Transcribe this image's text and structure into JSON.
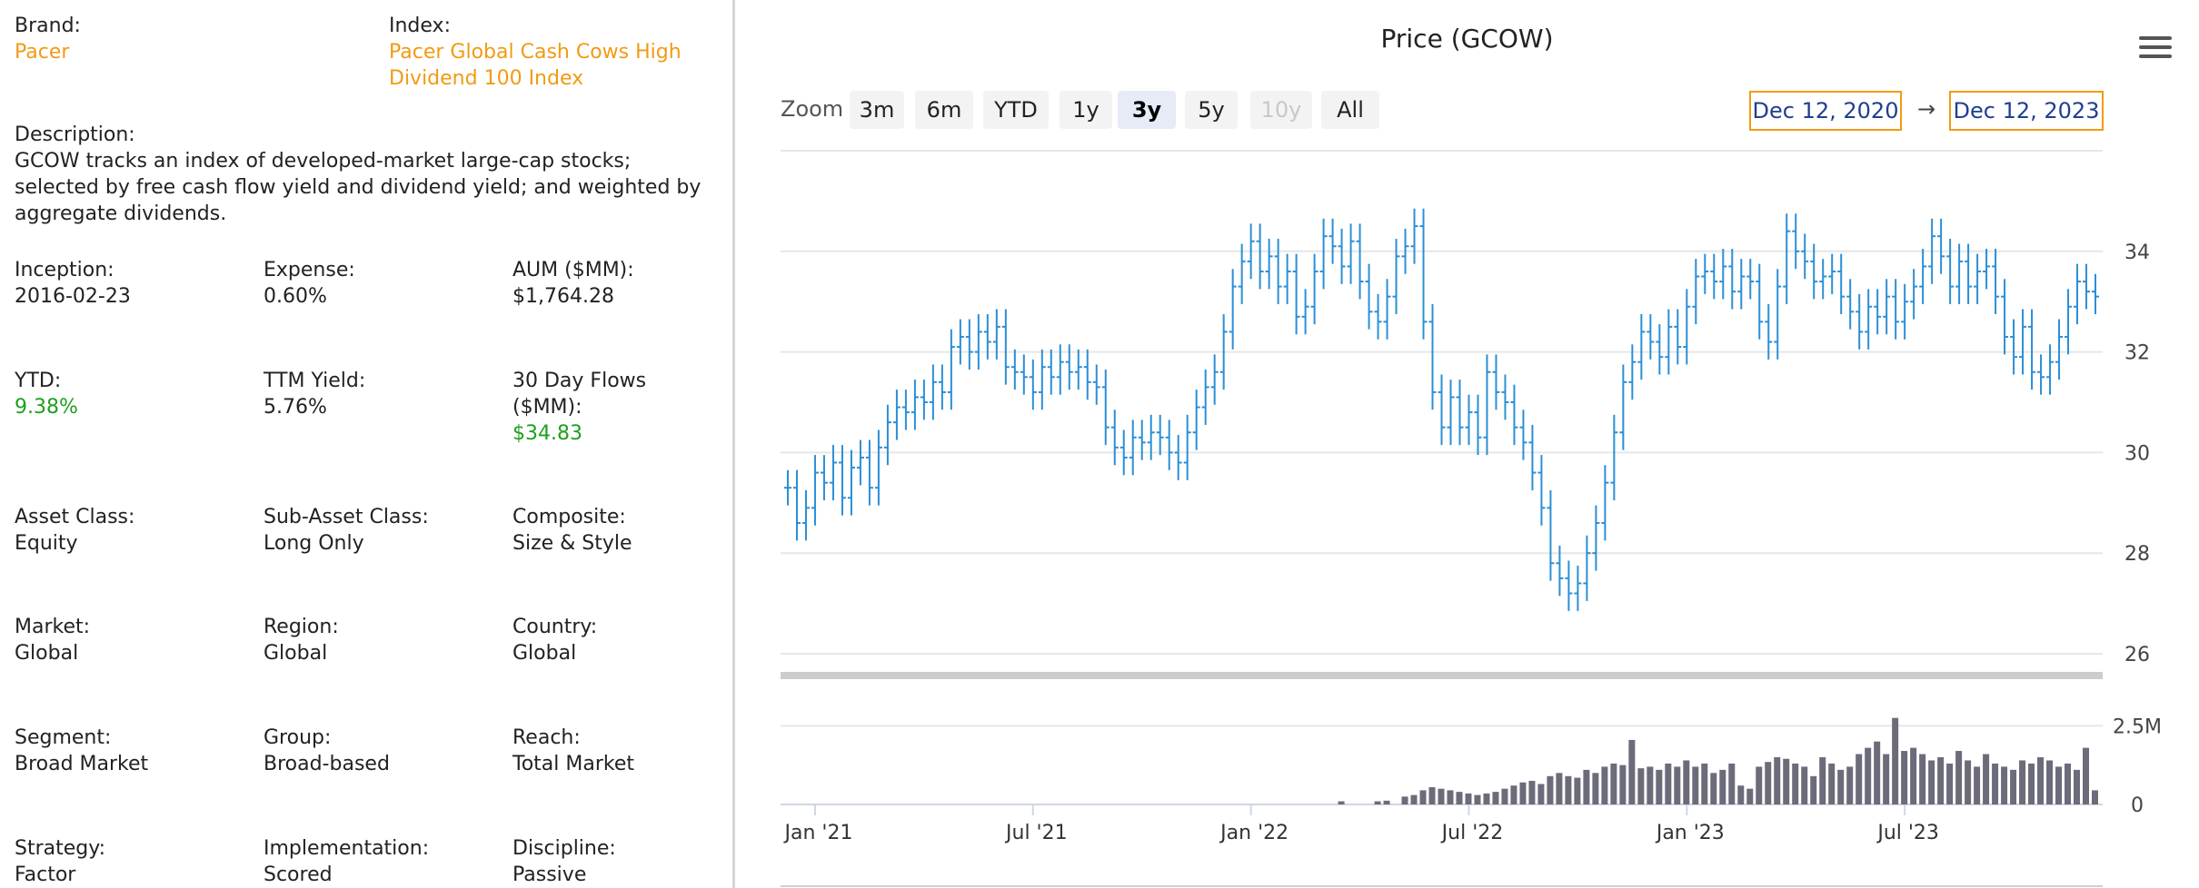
{
  "fields": {
    "brand": {
      "label": "Brand:",
      "value": "Pacer"
    },
    "index": {
      "label": "Index:",
      "value_line1": "Pacer Global Cash Cows High",
      "value_line2": "Dividend 100 Index"
    },
    "description": {
      "label": "Description:",
      "line1": "GCOW tracks an index of developed-market large-cap stocks;",
      "line2": "selected by free cash flow yield and dividend yield; and weighted by",
      "line3": "aggregate dividends."
    },
    "inception": {
      "label": "Inception:",
      "value": "2016-02-23"
    },
    "expense": {
      "label": "Expense:",
      "value": "0.60%"
    },
    "aum": {
      "label": "AUM ($MM):",
      "value": "$1,764.28"
    },
    "ytd": {
      "label": "YTD:",
      "value": "9.38%"
    },
    "ttm_yield": {
      "label": "TTM Yield:",
      "value": "5.76%"
    },
    "flows": {
      "label_line1": "30 Day Flows",
      "label_line2": "($MM):",
      "value": "$34.83"
    },
    "asset_class": {
      "label": "Asset Class:",
      "value": "Equity"
    },
    "sub_asset_class": {
      "label": "Sub-Asset Class:",
      "value": "Long Only"
    },
    "composite": {
      "label": "Composite:",
      "value": "Size & Style"
    },
    "market": {
      "label": "Market:",
      "value": "Global"
    },
    "region": {
      "label": "Region:",
      "value": "Global"
    },
    "country": {
      "label": "Country:",
      "value": "Global"
    },
    "segment": {
      "label": "Segment:",
      "value": "Broad Market"
    },
    "group": {
      "label": "Group:",
      "value": "Broad-based"
    },
    "reach": {
      "label": "Reach:",
      "value": "Total Market"
    },
    "strategy": {
      "label": "Strategy:",
      "value": "Factor"
    },
    "implementation": {
      "label": "Implementation:",
      "value": "Scored"
    },
    "discipline": {
      "label": "Discipline:",
      "value": "Passive"
    }
  },
  "chart": {
    "title": "Price (GCOW)",
    "zoom_label": "Zoom",
    "zoom_buttons": [
      "3m",
      "6m",
      "YTD",
      "1y",
      "3y",
      "5y",
      "10y",
      "All"
    ],
    "zoom_active": "3y",
    "zoom_disabled": [
      "10y"
    ],
    "date_from": "Dec 12, 2020",
    "date_arrow": "→",
    "date_to": "Dec 12, 2023",
    "colors": {
      "price": "#2b8fd6",
      "volume": "#6b6b7a",
      "grid": "#e6e6e6",
      "navigator": "#cccccc"
    }
  },
  "chart_data": {
    "type": "line",
    "title": "Price (GCOW)",
    "price_axis": {
      "ticks": [
        26,
        28,
        30,
        32,
        34
      ],
      "ylim": [
        26,
        36
      ]
    },
    "volume_axis": {
      "tick_labels": [
        "0",
        "2.5M"
      ],
      "ylim": [
        0,
        3000000
      ]
    },
    "x_axis": {
      "ticks": [
        "Jan '21",
        "Jul '21",
        "Jan '22",
        "Jul '22",
        "Jan '23",
        "Jul '23"
      ],
      "range": [
        "Dec 12, 2020",
        "Dec 12, 2023"
      ]
    },
    "price_series": {
      "name": "GCOW",
      "points": [
        [
          0,
          29.3
        ],
        [
          1,
          28.6
        ],
        [
          2,
          28.9
        ],
        [
          3,
          29.6
        ],
        [
          4,
          29.4
        ],
        [
          5,
          29.8
        ],
        [
          6,
          29.1
        ],
        [
          7,
          29.7
        ],
        [
          8,
          29.9
        ],
        [
          9,
          29.3
        ],
        [
          10,
          30.1
        ],
        [
          11,
          30.6
        ],
        [
          12,
          30.9
        ],
        [
          13,
          30.8
        ],
        [
          14,
          31.1
        ],
        [
          15,
          31.0
        ],
        [
          16,
          31.4
        ],
        [
          17,
          31.2
        ],
        [
          18,
          32.1
        ],
        [
          19,
          32.3
        ],
        [
          20,
          32.0
        ],
        [
          21,
          32.4
        ],
        [
          22,
          32.2
        ],
        [
          23,
          32.5
        ],
        [
          24,
          31.7
        ],
        [
          25,
          31.6
        ],
        [
          26,
          31.5
        ],
        [
          27,
          31.2
        ],
        [
          28,
          31.7
        ],
        [
          29,
          31.5
        ],
        [
          30,
          31.8
        ],
        [
          31,
          31.6
        ],
        [
          32,
          31.7
        ],
        [
          33,
          31.4
        ],
        [
          34,
          31.3
        ],
        [
          35,
          30.5
        ],
        [
          36,
          30.1
        ],
        [
          37,
          29.9
        ],
        [
          38,
          30.3
        ],
        [
          39,
          30.2
        ],
        [
          40,
          30.4
        ],
        [
          41,
          30.3
        ],
        [
          42,
          30.0
        ],
        [
          43,
          29.8
        ],
        [
          44,
          30.4
        ],
        [
          45,
          30.9
        ],
        [
          46,
          31.3
        ],
        [
          47,
          31.6
        ],
        [
          48,
          32.4
        ],
        [
          49,
          33.3
        ],
        [
          50,
          33.8
        ],
        [
          51,
          34.2
        ],
        [
          52,
          33.6
        ],
        [
          53,
          33.9
        ],
        [
          54,
          33.3
        ],
        [
          55,
          33.6
        ],
        [
          56,
          32.7
        ],
        [
          57,
          32.9
        ],
        [
          58,
          33.6
        ],
        [
          59,
          34.3
        ],
        [
          60,
          34.1
        ],
        [
          61,
          33.7
        ],
        [
          62,
          34.2
        ],
        [
          63,
          33.4
        ],
        [
          64,
          32.8
        ],
        [
          65,
          32.6
        ],
        [
          66,
          33.1
        ],
        [
          67,
          33.9
        ],
        [
          68,
          34.1
        ],
        [
          69,
          34.5
        ],
        [
          70,
          32.6
        ],
        [
          71,
          31.2
        ],
        [
          72,
          30.5
        ],
        [
          73,
          31.1
        ],
        [
          74,
          30.5
        ],
        [
          75,
          30.8
        ],
        [
          76,
          30.3
        ],
        [
          77,
          31.6
        ],
        [
          78,
          31.2
        ],
        [
          79,
          31.0
        ],
        [
          80,
          30.5
        ],
        [
          81,
          30.2
        ],
        [
          82,
          29.6
        ],
        [
          83,
          28.9
        ],
        [
          84,
          27.8
        ],
        [
          85,
          27.5
        ],
        [
          86,
          27.2
        ],
        [
          87,
          27.4
        ],
        [
          88,
          28.0
        ],
        [
          89,
          28.6
        ],
        [
          90,
          29.4
        ],
        [
          91,
          30.4
        ],
        [
          92,
          31.4
        ],
        [
          93,
          31.8
        ],
        [
          94,
          32.4
        ],
        [
          95,
          32.2
        ],
        [
          96,
          31.9
        ],
        [
          97,
          32.5
        ],
        [
          98,
          32.1
        ],
        [
          99,
          32.9
        ],
        [
          100,
          33.5
        ],
        [
          101,
          33.6
        ],
        [
          102,
          33.4
        ],
        [
          103,
          33.7
        ],
        [
          104,
          33.2
        ],
        [
          105,
          33.5
        ],
        [
          106,
          33.4
        ],
        [
          107,
          32.6
        ],
        [
          108,
          32.2
        ],
        [
          109,
          33.3
        ],
        [
          110,
          34.4
        ],
        [
          111,
          34.0
        ],
        [
          112,
          33.8
        ],
        [
          113,
          33.4
        ],
        [
          114,
          33.5
        ],
        [
          115,
          33.6
        ],
        [
          116,
          33.1
        ],
        [
          117,
          32.8
        ],
        [
          118,
          32.4
        ],
        [
          119,
          32.9
        ],
        [
          120,
          32.7
        ],
        [
          121,
          33.1
        ],
        [
          122,
          32.6
        ],
        [
          123,
          33.0
        ],
        [
          124,
          33.3
        ],
        [
          125,
          33.7
        ],
        [
          126,
          34.3
        ],
        [
          127,
          33.9
        ],
        [
          128,
          33.3
        ],
        [
          129,
          33.8
        ],
        [
          130,
          33.3
        ],
        [
          131,
          33.6
        ],
        [
          132,
          33.7
        ],
        [
          133,
          33.1
        ],
        [
          134,
          32.3
        ],
        [
          135,
          31.9
        ],
        [
          136,
          32.5
        ],
        [
          137,
          31.6
        ],
        [
          138,
          31.5
        ],
        [
          139,
          31.8
        ],
        [
          140,
          32.3
        ],
        [
          141,
          32.9
        ],
        [
          142,
          33.4
        ],
        [
          143,
          33.2
        ],
        [
          144,
          33.1
        ]
      ]
    },
    "volume_series": {
      "name": "Volume",
      "bars": [
        [
          61,
          0.1
        ],
        [
          65,
          0.1
        ],
        [
          66,
          0.12
        ],
        [
          68,
          0.25
        ],
        [
          69,
          0.3
        ],
        [
          70,
          0.45
        ],
        [
          71,
          0.55
        ],
        [
          72,
          0.5
        ],
        [
          73,
          0.45
        ],
        [
          74,
          0.4
        ],
        [
          75,
          0.35
        ],
        [
          76,
          0.3
        ],
        [
          77,
          0.35
        ],
        [
          78,
          0.4
        ],
        [
          79,
          0.5
        ],
        [
          80,
          0.6
        ],
        [
          81,
          0.7
        ],
        [
          82,
          0.75
        ],
        [
          83,
          0.65
        ],
        [
          84,
          0.9
        ],
        [
          85,
          1.0
        ],
        [
          86,
          0.9
        ],
        [
          87,
          0.85
        ],
        [
          88,
          1.1
        ],
        [
          89,
          1.0
        ],
        [
          90,
          1.2
        ],
        [
          91,
          1.3
        ],
        [
          92,
          1.25
        ],
        [
          93,
          2.05
        ],
        [
          94,
          1.15
        ],
        [
          95,
          1.2
        ],
        [
          96,
          1.1
        ],
        [
          97,
          1.3
        ],
        [
          98,
          1.2
        ],
        [
          99,
          1.4
        ],
        [
          100,
          1.2
        ],
        [
          101,
          1.3
        ],
        [
          102,
          1.0
        ],
        [
          103,
          1.1
        ],
        [
          104,
          1.3
        ],
        [
          105,
          0.6
        ],
        [
          106,
          0.5
        ],
        [
          107,
          1.2
        ],
        [
          108,
          1.35
        ],
        [
          109,
          1.5
        ],
        [
          110,
          1.45
        ],
        [
          111,
          1.3
        ],
        [
          112,
          1.2
        ],
        [
          113,
          0.9
        ],
        [
          114,
          1.5
        ],
        [
          115,
          1.3
        ],
        [
          116,
          1.1
        ],
        [
          117,
          1.2
        ],
        [
          118,
          1.6
        ],
        [
          119,
          1.8
        ],
        [
          120,
          2.0
        ],
        [
          121,
          1.6
        ],
        [
          122,
          2.75
        ],
        [
          123,
          1.7
        ],
        [
          124,
          1.8
        ],
        [
          125,
          1.6
        ],
        [
          126,
          1.4
        ],
        [
          127,
          1.5
        ],
        [
          128,
          1.3
        ],
        [
          129,
          1.7
        ],
        [
          130,
          1.4
        ],
        [
          131,
          1.2
        ],
        [
          132,
          1.6
        ],
        [
          133,
          1.3
        ],
        [
          134,
          1.2
        ],
        [
          135,
          1.1
        ],
        [
          136,
          1.4
        ],
        [
          137,
          1.3
        ],
        [
          138,
          1.5
        ],
        [
          139,
          1.4
        ],
        [
          140,
          1.2
        ],
        [
          141,
          1.3
        ],
        [
          142,
          1.1
        ],
        [
          143,
          1.8
        ],
        [
          144,
          0.45
        ]
      ]
    }
  }
}
